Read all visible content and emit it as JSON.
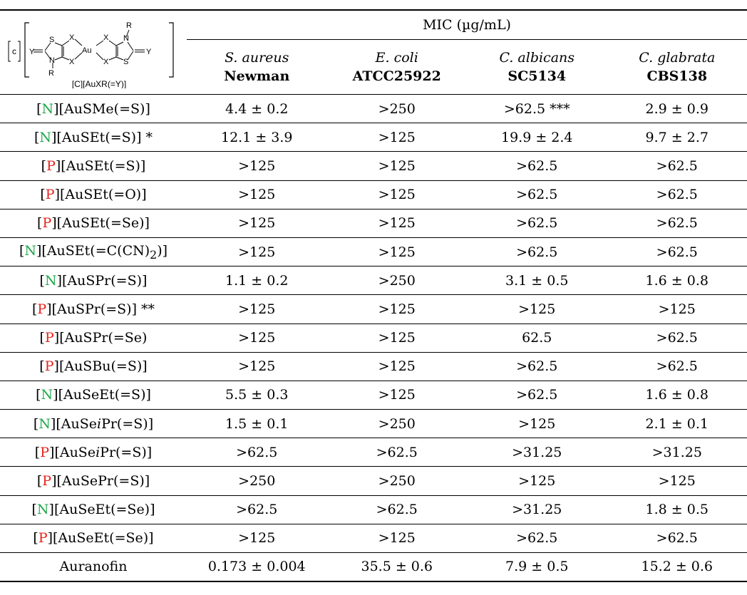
{
  "header": {
    "group_label": "MIC (µg/mL)",
    "structure": {
      "bracket_label": "c",
      "caption": "[C][AuXR(=Y)]",
      "atoms": {
        "s": "S",
        "x": "X",
        "au": "Au",
        "n": "N",
        "r": "R",
        "y": "Y"
      }
    },
    "columns": [
      {
        "species": "S. aureus",
        "strain": "Newman"
      },
      {
        "species": "E. coli",
        "strain": "ATCC25922"
      },
      {
        "species": "C. albicans",
        "strain": "SC5134"
      },
      {
        "species": "C. glabrata",
        "strain": "CBS138"
      }
    ]
  },
  "rows": [
    {
      "cation": "N",
      "pre": "[AuSMe(=S)]",
      "italic": "",
      "post": "",
      "sub": "",
      "tail": "",
      "note": "",
      "values": [
        "4.4 ± 0.2",
        ">250",
        ">62.5 ***",
        "2.9 ± 0.9"
      ]
    },
    {
      "cation": "N",
      "pre": "[AuSEt(=S)]",
      "italic": "",
      "post": "",
      "sub": "",
      "tail": "",
      "note": " *",
      "values": [
        "12.1 ± 3.9",
        ">125",
        "19.9 ± 2.4",
        "9.7 ± 2.7"
      ]
    },
    {
      "cation": "P",
      "pre": "[AuSEt(=S)]",
      "italic": "",
      "post": "",
      "sub": "",
      "tail": "",
      "note": "",
      "values": [
        ">125",
        ">125",
        ">62.5",
        ">62.5"
      ]
    },
    {
      "cation": "P",
      "pre": "[AuSEt(=O)]",
      "italic": "",
      "post": "",
      "sub": "",
      "tail": "",
      "note": "",
      "values": [
        ">125",
        ">125",
        ">62.5",
        ">62.5"
      ]
    },
    {
      "cation": "P",
      "pre": "[AuSEt(=Se)]",
      "italic": "",
      "post": "",
      "sub": "",
      "tail": "",
      "note": "",
      "values": [
        ">125",
        ">125",
        ">62.5",
        ">62.5"
      ]
    },
    {
      "cation": "N",
      "pre": "[AuSEt(=C(CN)",
      "italic": "",
      "post": "",
      "sub": "2",
      "tail": ")]",
      "note": "",
      "values": [
        ">125",
        ">125",
        ">62.5",
        ">62.5"
      ]
    },
    {
      "cation": "N",
      "pre": "[AuSPr(=S)]",
      "italic": "",
      "post": "",
      "sub": "",
      "tail": "",
      "note": "",
      "values": [
        "1.1 ± 0.2",
        ">250",
        "3.1 ± 0.5",
        "1.6 ± 0.8"
      ]
    },
    {
      "cation": "P",
      "pre": "[AuSPr(=S)]",
      "italic": "",
      "post": "",
      "sub": "",
      "tail": "",
      "note": " **",
      "values": [
        ">125",
        ">125",
        ">125",
        ">125"
      ]
    },
    {
      "cation": "P",
      "pre": "[AuSPr(=Se)",
      "italic": "",
      "post": "",
      "sub": "",
      "tail": "",
      "note": "",
      "values": [
        ">125",
        ">125",
        "62.5",
        ">62.5"
      ]
    },
    {
      "cation": "P",
      "pre": "[AuSBu(=S)]",
      "italic": "",
      "post": "",
      "sub": "",
      "tail": "",
      "note": "",
      "values": [
        ">125",
        ">125",
        ">62.5",
        ">62.5"
      ]
    },
    {
      "cation": "N",
      "pre": "[AuSeEt(=S)]",
      "italic": "",
      "post": "",
      "sub": "",
      "tail": "",
      "note": "",
      "values": [
        "5.5 ± 0.3",
        ">125",
        ">62.5",
        "1.6 ± 0.8"
      ]
    },
    {
      "cation": "N",
      "pre": "[AuSe",
      "italic": "i",
      "post": "Pr(=S)]",
      "sub": "",
      "tail": "",
      "note": "",
      "values": [
        "1.5 ± 0.1",
        ">250",
        ">125",
        "2.1 ± 0.1"
      ]
    },
    {
      "cation": "P",
      "pre": "[AuSe",
      "italic": "i",
      "post": "Pr(=S)]",
      "sub": "",
      "tail": "",
      "note": "",
      "values": [
        ">62.5",
        ">62.5",
        ">31.25",
        ">31.25"
      ]
    },
    {
      "cation": "P",
      "pre": "[AuSePr(=S)]",
      "italic": "",
      "post": "",
      "sub": "",
      "tail": "",
      "note": "",
      "values": [
        ">250",
        ">250",
        ">125",
        ">125"
      ]
    },
    {
      "cation": "N",
      "pre": "[AuSeEt(=Se)]",
      "italic": "",
      "post": "",
      "sub": "",
      "tail": "",
      "note": "",
      "values": [
        ">62.5",
        ">62.5",
        ">31.25",
        "1.8 ± 0.5"
      ]
    },
    {
      "cation": "P",
      "pre": "[AuSeEt(=Se)]",
      "italic": "",
      "post": "",
      "sub": "",
      "tail": "",
      "note": "",
      "values": [
        ">125",
        ">125",
        ">62.5",
        ">62.5"
      ]
    },
    {
      "label": "Auranofin",
      "values": [
        "0.173 ± 0.004",
        "35.5 ± 0.6",
        "7.9 ± 0.5",
        "15.2 ± 0.6"
      ]
    }
  ],
  "colors": {
    "N": "#1fa84a",
    "P": "#e8231b"
  }
}
